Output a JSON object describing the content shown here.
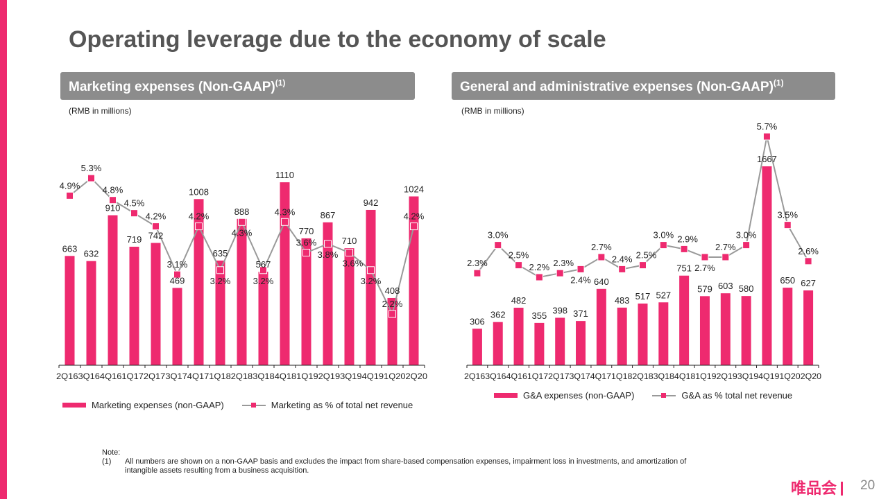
{
  "title": "Operating leverage due to the economy of scale",
  "left_header": {
    "text": "Marketing expenses (Non-GAAP)",
    "sup": "(1)"
  },
  "right_header": {
    "text": "General and administrative expenses (Non-GAAP)",
    "sup": "(1)"
  },
  "unit_label": "(RMB in millions)",
  "note": {
    "label": "Note:",
    "num": "(1)",
    "line1": "All numbers are shown on a non-GAAP basis and excludes the impact from share-based compensation expenses, impairment loss in investments, and amortization of",
    "line2": "intangible assets resulting from a business acquisition."
  },
  "logo_text": "唯品会",
  "page_number": "20",
  "colors": {
    "bar": "#ee2a6f",
    "line": "#999999",
    "header": "#8c8c8c"
  },
  "chart_data": [
    {
      "type": "bar",
      "title": "Marketing expenses (Non-GAAP)",
      "categories": [
        "2Q16",
        "3Q16",
        "4Q16",
        "1Q17",
        "2Q17",
        "3Q17",
        "4Q17",
        "1Q18",
        "2Q18",
        "3Q18",
        "4Q18",
        "1Q19",
        "2Q19",
        "3Q19",
        "4Q19",
        "1Q20",
        "2Q20"
      ],
      "series": [
        {
          "name": "Marketing expenses (non-GAAP)",
          "kind": "bar",
          "values": [
            663,
            632,
            910,
            719,
            742,
            469,
            1008,
            635,
            888,
            567,
            1110,
            770,
            867,
            710,
            942,
            408,
            1024
          ]
        },
        {
          "name": "Marketing as % of total net revenue",
          "kind": "line",
          "values": [
            4.9,
            5.3,
            4.8,
            4.5,
            4.2,
            3.1,
            4.2,
            3.2,
            4.3,
            3.2,
            4.3,
            3.6,
            3.8,
            3.6,
            3.2,
            2.2,
            4.2
          ]
        }
      ],
      "legend_position": "bottom"
    },
    {
      "type": "bar",
      "title": "General and administrative expenses (Non-GAAP)",
      "categories": [
        "2Q16",
        "3Q16",
        "4Q16",
        "1Q17",
        "2Q17",
        "3Q17",
        "4Q17",
        "1Q18",
        "2Q18",
        "3Q18",
        "4Q18",
        "1Q19",
        "2Q19",
        "3Q19",
        "4Q19",
        "1Q20",
        "2Q20"
      ],
      "series": [
        {
          "name": "G&A expenses (non-GAAP)",
          "kind": "bar",
          "values": [
            306,
            362,
            482,
            355,
            398,
            371,
            640,
            483,
            517,
            527,
            751,
            579,
            603,
            580,
            1667,
            650,
            627
          ]
        },
        {
          "name": "G&A as % total net revenue",
          "kind": "line",
          "values": [
            2.3,
            3.0,
            2.5,
            2.2,
            2.3,
            2.4,
            2.7,
            2.4,
            2.5,
            3.0,
            2.9,
            2.7,
            2.7,
            3.0,
            5.7,
            3.5,
            2.6
          ]
        }
      ],
      "legend_position": "bottom"
    }
  ]
}
